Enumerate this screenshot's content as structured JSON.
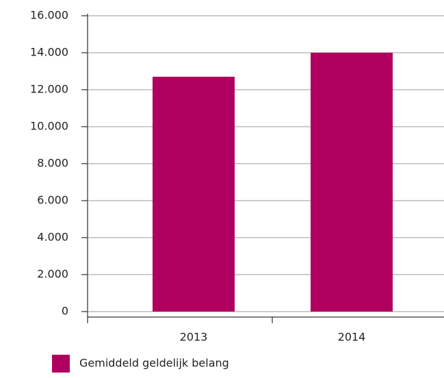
{
  "chart_data": {
    "type": "bar",
    "categories": [
      "2013",
      "2014"
    ],
    "series": [
      {
        "name": "Gemiddeld geldelijk belang",
        "color": "#b0005f",
        "values": [
          12700,
          14000
        ]
      }
    ],
    "ylim": [
      0,
      16000
    ],
    "yticks": [
      0,
      {
        "value": 2000,
        "label": "2.000"
      },
      {
        "value": 4000,
        "label": "4.000"
      },
      {
        "value": 6000,
        "label": "6.000"
      },
      {
        "value": 8000,
        "label": "8.000"
      },
      {
        "value": 10000,
        "label": "10.000"
      },
      {
        "value": 12000,
        "label": "12.000"
      },
      {
        "value": 14000,
        "label": "14.000"
      },
      {
        "value": 16000,
        "label": "16.000"
      }
    ],
    "grid": true
  }
}
